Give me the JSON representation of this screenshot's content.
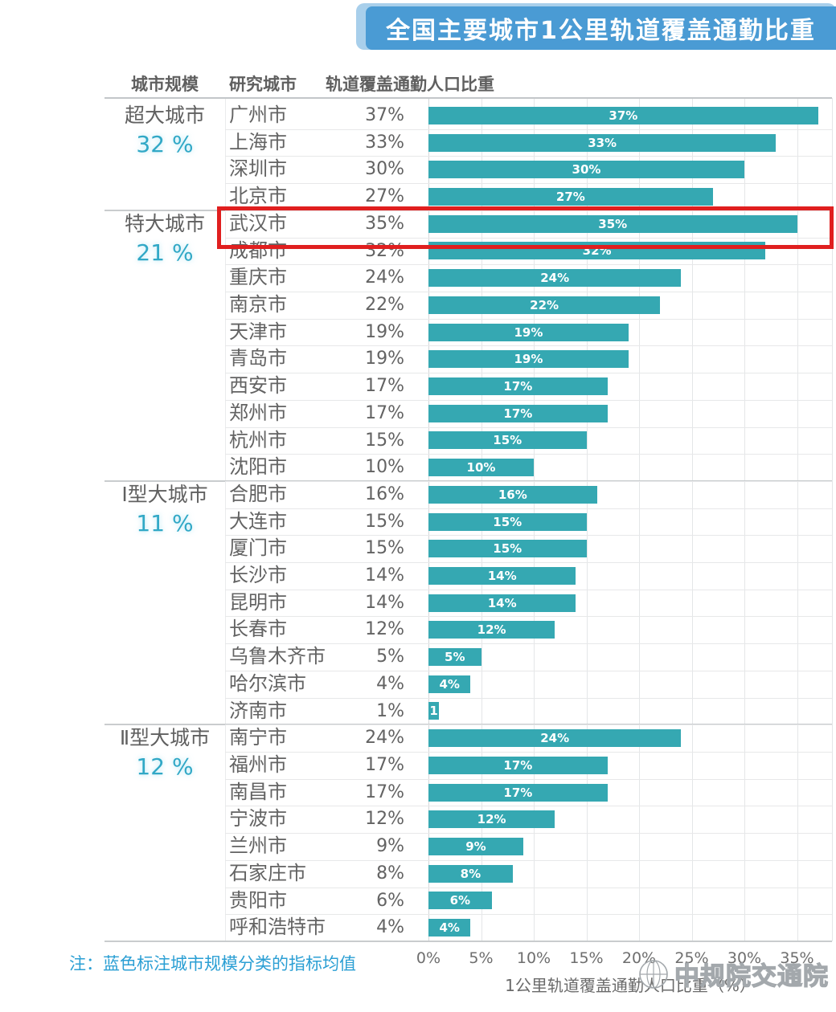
{
  "title": "全国主要城市1公里轨道覆盖通勤比重",
  "table_headers": {
    "scale": "城市规模",
    "city": "研究城市",
    "metric": "轨道覆盖通勤人口比重"
  },
  "note": "注：蓝色标注城市规模分类的指标均值",
  "watermark": "中规院交通院",
  "colors": {
    "banner_blue": "#4a9bd4",
    "banner_halo": "#a8cfeb",
    "bar_teal": "#35a8b2",
    "mean_teal": "#31a8c6",
    "note_blue": "#2b9fd4",
    "text_gray": "#636363",
    "highlight_red": "#e01f1f"
  },
  "chart_data": {
    "type": "bar",
    "orientation": "horizontal",
    "title": "全国主要城市1公里轨道覆盖通勤比重",
    "xlabel": "1公里轨道覆盖通勤人口比重（%）",
    "xlim": [
      0,
      38.3
    ],
    "x_ticks": [
      "0%",
      "5%",
      "10%",
      "15%",
      "20%",
      "25%",
      "30%",
      "35%"
    ],
    "grid": true,
    "bar_color": "#35a8b2",
    "legend": "none",
    "highlight": {
      "city": "武汉市",
      "box_color": "#e01f1f"
    },
    "groups": [
      {
        "scale": "超大城市",
        "mean_label": "32 %",
        "mean": 32,
        "cities": [
          {
            "name": "广州市",
            "value": 37
          },
          {
            "name": "上海市",
            "value": 33
          },
          {
            "name": "深圳市",
            "value": 30
          },
          {
            "name": "北京市",
            "value": 27
          }
        ]
      },
      {
        "scale": "特大城市",
        "mean_label": "21 %",
        "mean": 21,
        "cities": [
          {
            "name": "武汉市",
            "value": 35
          },
          {
            "name": "成都市",
            "value": 32
          },
          {
            "name": "重庆市",
            "value": 24
          },
          {
            "name": "南京市",
            "value": 22
          },
          {
            "name": "天津市",
            "value": 19
          },
          {
            "name": "青岛市",
            "value": 19
          },
          {
            "name": "西安市",
            "value": 17
          },
          {
            "name": "郑州市",
            "value": 17
          },
          {
            "name": "杭州市",
            "value": 15
          },
          {
            "name": "沈阳市",
            "value": 10
          }
        ]
      },
      {
        "scale": "Ⅰ型大城市",
        "mean_label": "11 %",
        "mean": 11,
        "cities": [
          {
            "name": "合肥市",
            "value": 16
          },
          {
            "name": "大连市",
            "value": 15
          },
          {
            "name": "厦门市",
            "value": 15
          },
          {
            "name": "长沙市",
            "value": 14
          },
          {
            "name": "昆明市",
            "value": 14
          },
          {
            "name": "长春市",
            "value": 12
          },
          {
            "name": "乌鲁木齐市",
            "value": 5
          },
          {
            "name": "哈尔滨市",
            "value": 4
          },
          {
            "name": "济南市",
            "value": 1
          }
        ]
      },
      {
        "scale": "Ⅱ型大城市",
        "mean_label": "12 %",
        "mean": 12,
        "cities": [
          {
            "name": "南宁市",
            "value": 24
          },
          {
            "name": "福州市",
            "value": 17
          },
          {
            "name": "南昌市",
            "value": 17
          },
          {
            "name": "宁波市",
            "value": 12
          },
          {
            "name": "兰州市",
            "value": 9
          },
          {
            "name": "石家庄市",
            "value": 8
          },
          {
            "name": "贵阳市",
            "value": 6
          },
          {
            "name": "呼和浩特市",
            "value": 4
          }
        ]
      }
    ]
  }
}
